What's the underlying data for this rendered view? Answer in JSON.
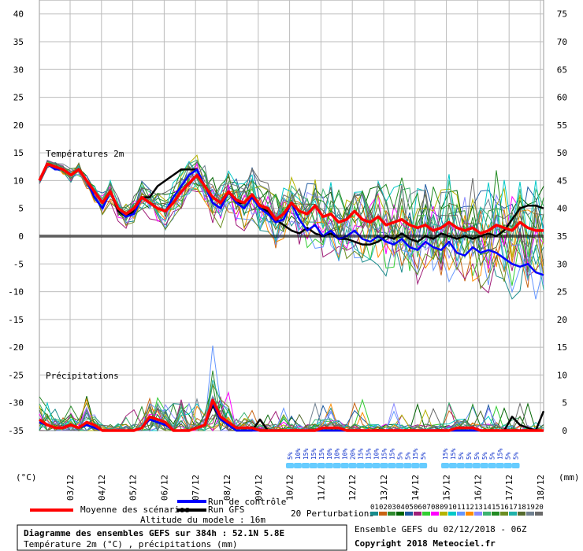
{
  "chart_data": {
    "type": "line",
    "section_temp_label": "Températures 2m",
    "section_precip_label": "Précipitations",
    "left_axis_unit": "(°C)",
    "right_axis_unit": "(mm)",
    "left_ticks": [
      "40",
      "35",
      "30",
      "25",
      "20",
      "15",
      "10",
      "5",
      "0",
      "-5",
      "-10",
      "-15",
      "-20",
      "-25",
      "-30",
      "-35"
    ],
    "right_ticks": [
      "75",
      "70",
      "65",
      "60",
      "55",
      "50",
      "45",
      "40",
      "35",
      "30",
      "25",
      "20",
      "15",
      "10",
      "5",
      "0"
    ],
    "x_labels": [
      "03/12",
      "04/12",
      "05/12",
      "06/12",
      "07/12",
      "08/12",
      "09/12",
      "10/12",
      "11/12",
      "12/12",
      "13/12",
      "14/12",
      "15/12",
      "16/12",
      "17/12",
      "18/12"
    ],
    "ylim_temp": [
      -35,
      42
    ],
    "mean_temp": [
      10,
      13,
      12.5,
      12,
      11,
      12,
      10,
      8,
      6,
      8,
      5,
      4,
      5,
      7,
      6,
      5,
      4.5,
      6,
      8,
      9.5,
      11,
      9,
      7,
      6,
      8,
      6.5,
      6,
      7.5,
      5.5,
      5,
      3,
      4,
      6,
      4.5,
      4,
      5.5,
      3.5,
      4,
      2.5,
      3,
      4.5,
      3,
      2.5,
      3.5,
      2,
      2.5,
      3,
      2,
      1.5,
      2,
      1,
      1.5,
      2.5,
      1.5,
      1,
      1.5,
      0.5,
      1,
      2,
      1.5,
      1,
      2.5,
      1.5,
      1,
      1
    ],
    "control_temp": [
      10,
      13,
      12,
      12,
      11,
      12,
      10,
      7,
      5,
      8,
      5,
      3.5,
      4,
      7,
      6,
      5,
      4.5,
      7,
      9,
      11,
      12,
      9,
      6,
      5,
      8,
      6,
      5,
      7,
      5,
      4,
      2.5,
      3,
      6,
      3,
      1,
      2,
      0,
      1,
      -0.5,
      0,
      1,
      -0.5,
      -1,
      0,
      -1,
      -1.5,
      -0.5,
      -2,
      -2.5,
      -1,
      -2,
      -2.5,
      -1,
      -3,
      -3.5,
      -2,
      -3,
      -2.5,
      -3,
      -4,
      -5,
      -5.5,
      -5,
      -6.5,
      -7
    ],
    "gfs_temp": [
      10,
      13,
      12.5,
      12,
      11,
      12,
      10,
      7,
      5,
      8,
      4.5,
      3.5,
      4.5,
      7,
      7,
      9,
      10,
      11,
      12,
      12,
      12,
      9,
      6,
      5,
      8,
      6,
      6,
      7.5,
      5,
      4.5,
      3,
      2,
      1,
      0.5,
      1.5,
      0.5,
      0,
      0.5,
      -0.5,
      -0.5,
      -1,
      -1.5,
      -1.5,
      -1,
      0,
      -0.5,
      0.5,
      -0.5,
      -1,
      0,
      -0.5,
      0.5,
      0,
      -0.5,
      0,
      -0.5,
      0,
      0.5,
      0,
      1,
      3,
      5,
      5.5,
      5.5,
      5
    ],
    "mean_precip": [
      2,
      1,
      0.5,
      0.5,
      1,
      0.5,
      1.5,
      1,
      0,
      0,
      0,
      0,
      0,
      0.5,
      2.5,
      2,
      1.5,
      0,
      0,
      0,
      0.5,
      1,
      5.5,
      2.5,
      1.5,
      0.5,
      0.5,
      0.5,
      0,
      0,
      0,
      0,
      0,
      0,
      0,
      0,
      0.5,
      0.5,
      0.5,
      0,
      0,
      0,
      0,
      0,
      0,
      0,
      0,
      0,
      0,
      0,
      0,
      0,
      0,
      0.5,
      0.5,
      0.5,
      0,
      0,
      0,
      0,
      0,
      0,
      0,
      0,
      0
    ],
    "control_precip": [
      1.5,
      1,
      0.5,
      0.5,
      1,
      0.5,
      1,
      0.5,
      0,
      0,
      0,
      0,
      0,
      0.5,
      2,
      1.5,
      1,
      0,
      0,
      0,
      0.5,
      1,
      5,
      2,
      1,
      0,
      0,
      0,
      0,
      0,
      0,
      0,
      0,
      0,
      0,
      0,
      0,
      0,
      0,
      0,
      0,
      0,
      0,
      0,
      0,
      0,
      0,
      0,
      0,
      0,
      0,
      0,
      0,
      0,
      0,
      0,
      0,
      0,
      0,
      0,
      0,
      0,
      0,
      0,
      0
    ],
    "gfs_precip": [
      1.5,
      1,
      0.5,
      0.5,
      1,
      0.5,
      1,
      0.5,
      0,
      0,
      0,
      0,
      0,
      0.5,
      2,
      1.5,
      1,
      0,
      0,
      0,
      0.5,
      1,
      4.5,
      2,
      1,
      0,
      0,
      0,
      2,
      0,
      0,
      0,
      0,
      0,
      0,
      0,
      0,
      0,
      0,
      0,
      0,
      0,
      0,
      0,
      0,
      0,
      0,
      0,
      0,
      0,
      0,
      0,
      0,
      0,
      0,
      0,
      0,
      0,
      0,
      0,
      2.5,
      1,
      0.5,
      0,
      3.5
    ],
    "snow_pct": [
      "5%",
      "10%",
      "15%",
      "15%",
      "15%",
      "10%",
      "10%",
      "10%",
      "20%",
      "15%",
      "15%",
      "10%",
      "15%",
      "15%",
      "5%",
      "5%",
      "15%",
      "5%",
      "15%",
      "15%",
      "5%",
      "5%",
      "5%",
      "5%",
      "5%",
      "15%",
      "5%",
      "5%"
    ],
    "perturbation_ids": [
      "01",
      "02",
      "03",
      "04",
      "05",
      "06",
      "07",
      "08",
      "09",
      "10",
      "11",
      "12",
      "13",
      "14",
      "15",
      "16",
      "17",
      "18",
      "19",
      "20"
    ],
    "perturbation_colors": [
      "#1a8c8c",
      "#c86414",
      "#2e8b2e",
      "#006400",
      "#1e5aa0",
      "#a01e78",
      "#32cd32",
      "#ff00ff",
      "#b4b400",
      "#00c8c8",
      "#6496ff",
      "#ff8c00",
      "#8a8aff",
      "#3cb371",
      "#228b22",
      "#6b8e23",
      "#20b2aa",
      "#556b2f",
      "#708090",
      "#696969"
    ],
    "legend": {
      "mean": "Moyenne des scénarios",
      "control": "Run de contrôle",
      "gfs": "Run GFS",
      "perturbations": "20 Perturbations"
    },
    "altitude": "Altitude du modele : 16m",
    "title": "Diagramme des ensembles GEFS sur 384h : 52.1N 5.8E",
    "subtitle": "Température 2m (°C) , précipitations (mm)",
    "ensemble_info": "Ensemble GEFS du 02/12/2018 - 06Z",
    "copyright": "Copyright 2018 Meteociel.fr",
    "colors": {
      "mean": "#ff0000",
      "control": "#0000ff",
      "gfs": "#000000",
      "grid": "#bbbbbb",
      "snow": "#66ccff"
    }
  }
}
